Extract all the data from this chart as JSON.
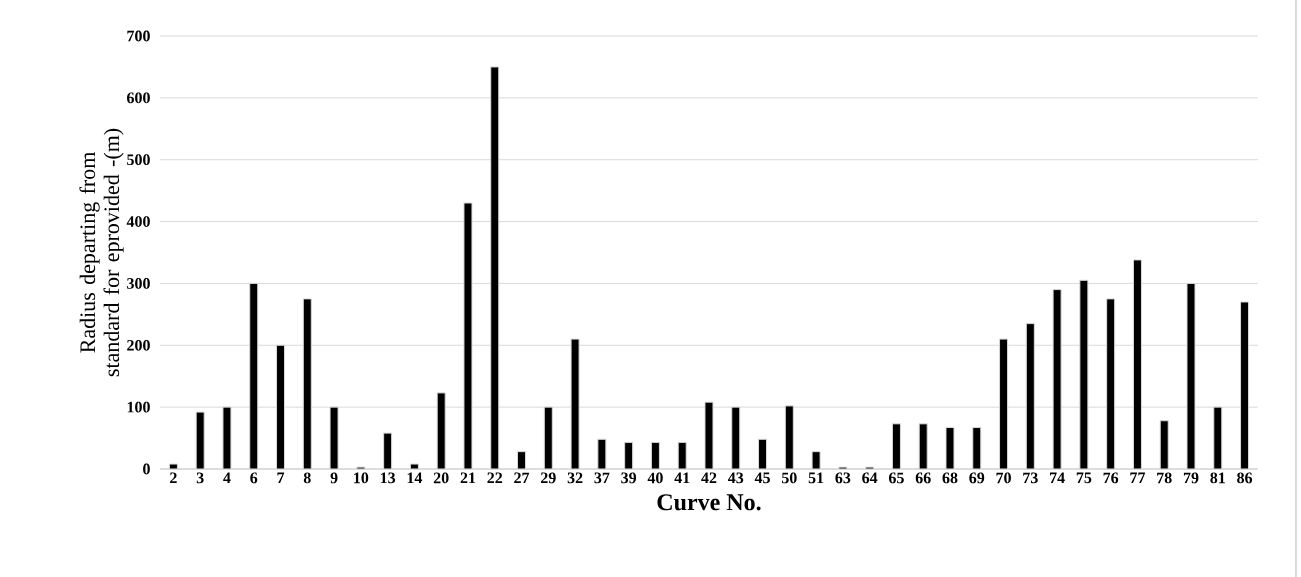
{
  "chart_data": {
    "type": "bar",
    "xlabel": "Curve No.",
    "ylabel": "Radius departing from standard for eprovided -(m)",
    "categories": [
      "2",
      "3",
      "4",
      "6",
      "7",
      "8",
      "9",
      "10",
      "13",
      "14",
      "20",
      "21",
      "22",
      "27",
      "29",
      "32",
      "37",
      "39",
      "40",
      "41",
      "42",
      "43",
      "45",
      "50",
      "51",
      "63",
      "64",
      "65",
      "66",
      "68",
      "69",
      "70",
      "73",
      "74",
      "75",
      "76",
      "77",
      "78",
      "79",
      "81",
      "86"
    ],
    "values": [
      8,
      92,
      100,
      300,
      200,
      275,
      100,
      3,
      58,
      8,
      123,
      430,
      650,
      28,
      100,
      210,
      48,
      43,
      43,
      43,
      108,
      100,
      48,
      102,
      28,
      3,
      3,
      73,
      73,
      67,
      67,
      210,
      235,
      290,
      305,
      275,
      338,
      78,
      300,
      100,
      270
    ],
    "color": "#000000",
    "ylim": [
      0,
      700
    ],
    "yticks": [
      0,
      100,
      200,
      300,
      400,
      500,
      600,
      700
    ],
    "grid": "y"
  }
}
